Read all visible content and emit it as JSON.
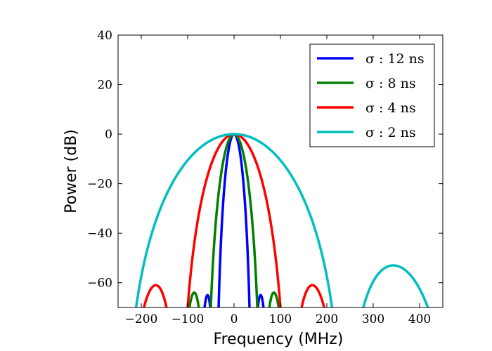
{
  "chart_data": {
    "type": "line",
    "title": "",
    "xlabel": "Frequency (MHz)",
    "ylabel": "Power (dB)",
    "xlim": [
      -250,
      450
    ],
    "ylim": [
      -70,
      40
    ],
    "xticks": [
      -200,
      -100,
      0,
      100,
      200,
      300,
      400
    ],
    "yticks": [
      -60,
      -40,
      -20,
      0,
      20,
      40
    ],
    "xtick_labels": [
      "−200",
      "−100",
      "0",
      "100",
      "200",
      "300",
      "400"
    ],
    "ytick_labels": [
      "−60",
      "−40",
      "−20",
      "0",
      "20",
      "40"
    ],
    "grid": false,
    "legend_position": "top-right",
    "series": [
      {
        "name": "σ : 12 ns",
        "color": "#0000ff",
        "sigma_ns": 12,
        "main_lobe_null_mhz": 40,
        "sidelobe_peak_db": -65
      },
      {
        "name": "σ : 8 ns",
        "color": "#008000",
        "sigma_ns": 8,
        "main_lobe_null_mhz": 60,
        "sidelobe_peak_db": -64
      },
      {
        "name": "σ : 4 ns",
        "color": "#ff0000",
        "sigma_ns": 4,
        "main_lobe_null_mhz": 118,
        "sidelobe_peak_db": -61
      },
      {
        "name": "σ : 2 ns",
        "color": "#00bfbf",
        "sigma_ns": 2,
        "main_lobe_null_mhz": 240,
        "sidelobe_peak_db": -53
      }
    ]
  }
}
